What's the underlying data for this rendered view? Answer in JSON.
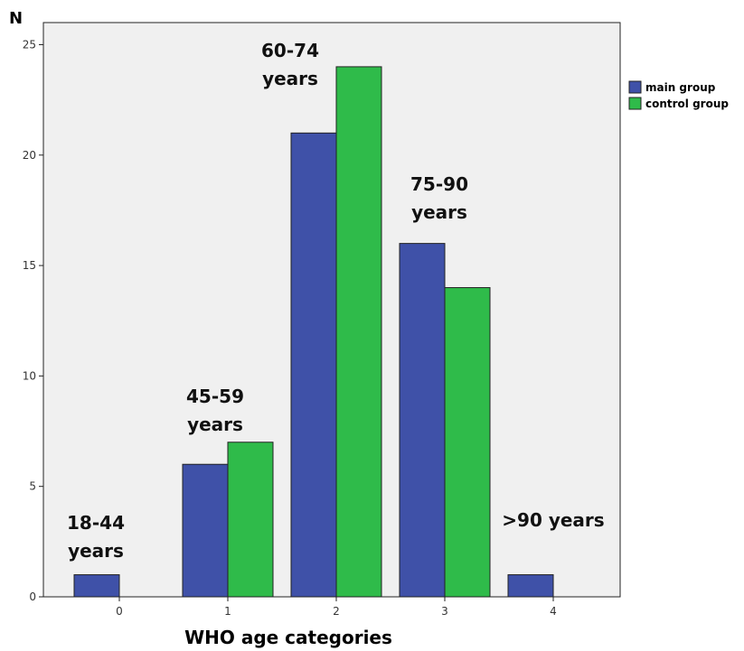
{
  "chart_data": {
    "type": "bar",
    "categories": [
      "0",
      "1",
      "2",
      "3",
      "4"
    ],
    "series": [
      {
        "name": "main group",
        "values": [
          1,
          6,
          21,
          16,
          1
        ],
        "color": "#3f51a8"
      },
      {
        "name": "control group",
        "values": [
          0,
          7,
          24,
          14,
          0
        ],
        "color": "#2fbb4a"
      }
    ],
    "title": "",
    "xlabel": "WHO age categories",
    "ylabel": "N",
    "ylim": [
      0,
      26
    ],
    "yticks": [
      0,
      5,
      10,
      15,
      20,
      25
    ],
    "grid": false,
    "legend_position": "right",
    "background_color": "#f0f0f0",
    "annotations": [
      {
        "category": "0",
        "lines": [
          "18-44",
          "years"
        ]
      },
      {
        "category": "1",
        "lines": [
          "45-59",
          "years"
        ]
      },
      {
        "category": "2",
        "lines": [
          "60-74",
          "years"
        ]
      },
      {
        "category": "3",
        "lines": [
          "75-90",
          "years"
        ]
      },
      {
        "category": "4",
        "lines": [
          ">90 years"
        ]
      }
    ]
  }
}
